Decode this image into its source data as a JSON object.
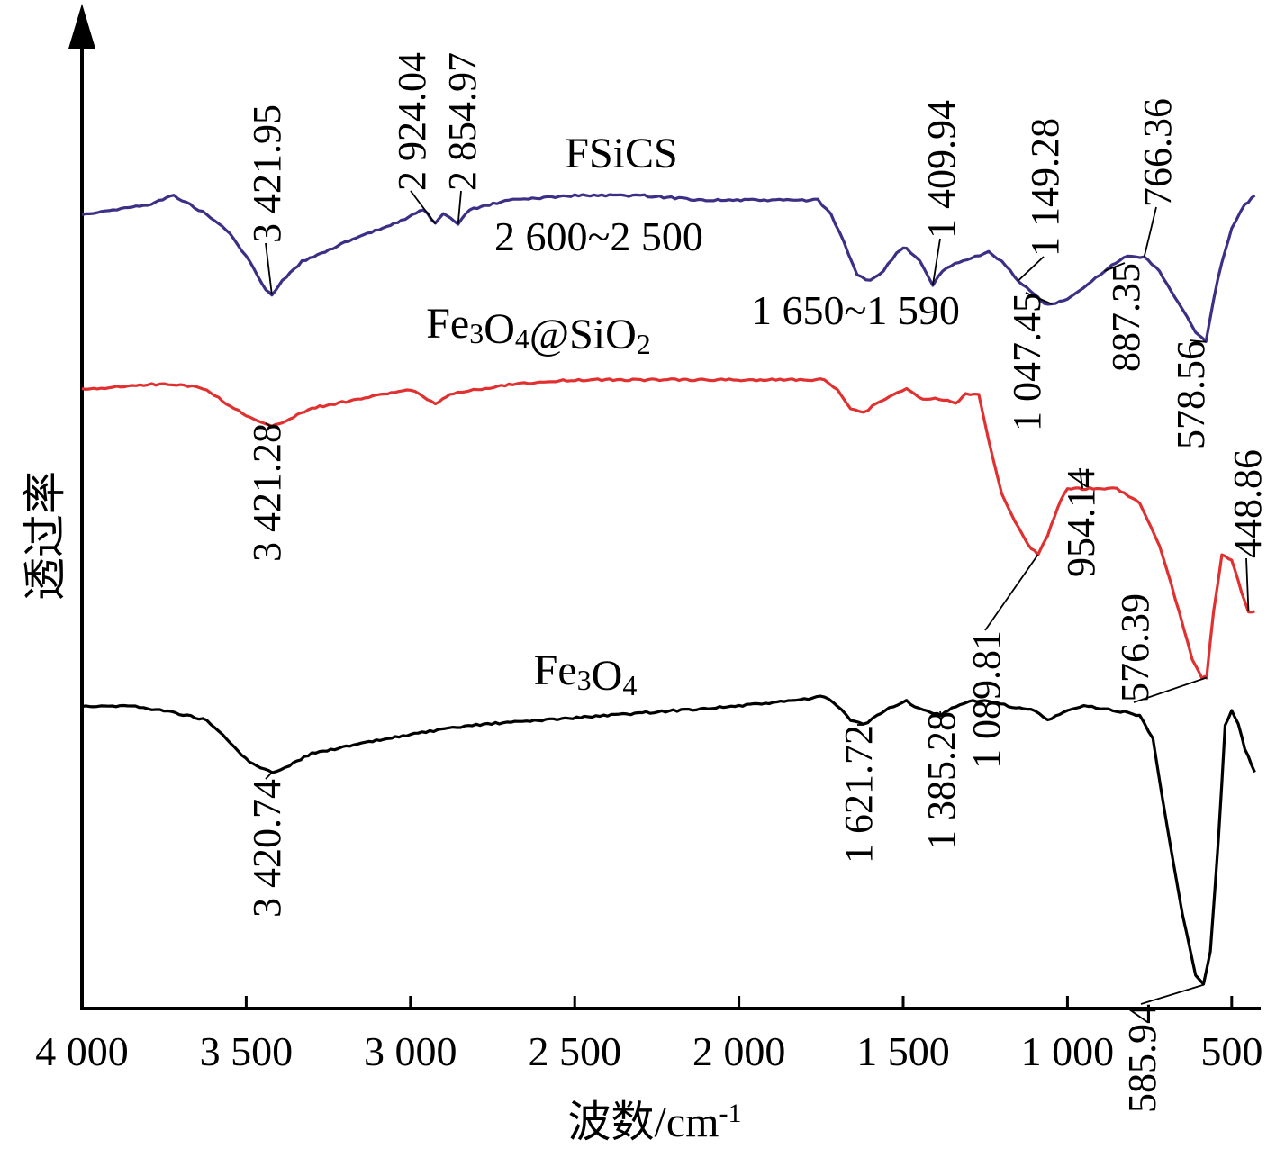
{
  "chart_data": {
    "type": "line",
    "xlabel": "波数/cm",
    "xlabel_superscript": "-1",
    "ylabel": "透过率",
    "xlim": [
      4000,
      420
    ],
    "x_reversed": true,
    "y_axis_ticks": false,
    "grid": false,
    "legend": "none (series labeled inline above each curve)",
    "x_ticks": [
      {
        "value": 4000,
        "label": "4 000"
      },
      {
        "value": 3500,
        "label": "3 500"
      },
      {
        "value": 3000,
        "label": "3 000"
      },
      {
        "value": 2500,
        "label": "2 500"
      },
      {
        "value": 2000,
        "label": "2 000"
      },
      {
        "value": 1500,
        "label": "1 500"
      },
      {
        "value": 1000,
        "label": "1 000"
      },
      {
        "value": 500,
        "label": "500"
      }
    ],
    "series": [
      {
        "name": "FSiCS",
        "name_parts": [
          {
            "t": "FSiCS"
          }
        ],
        "color": "#3b2f86",
        "offset": 0.84,
        "points": [
          [
            4000,
            0.84
          ],
          [
            3800,
            0.85
          ],
          [
            3720,
            0.86
          ],
          [
            3670,
            0.85
          ],
          [
            3620,
            0.84
          ],
          [
            3550,
            0.82
          ],
          [
            3490,
            0.79
          ],
          [
            3440,
            0.76
          ],
          [
            3421.95,
            0.755
          ],
          [
            3390,
            0.77
          ],
          [
            3330,
            0.79
          ],
          [
            3200,
            0.81
          ],
          [
            3050,
            0.83
          ],
          [
            2960,
            0.845
          ],
          [
            2924.04,
            0.83
          ],
          [
            2900,
            0.84
          ],
          [
            2854.97,
            0.83
          ],
          [
            2820,
            0.845
          ],
          [
            2700,
            0.855
          ],
          [
            2500,
            0.86
          ],
          [
            2300,
            0.86
          ],
          [
            2100,
            0.855
          ],
          [
            1900,
            0.855
          ],
          [
            1760,
            0.855
          ],
          [
            1720,
            0.84
          ],
          [
            1680,
            0.81
          ],
          [
            1640,
            0.775
          ],
          [
            1600,
            0.77
          ],
          [
            1560,
            0.78
          ],
          [
            1520,
            0.8
          ],
          [
            1490,
            0.805
          ],
          [
            1450,
            0.79
          ],
          [
            1409.94,
            0.765
          ],
          [
            1380,
            0.78
          ],
          [
            1330,
            0.79
          ],
          [
            1280,
            0.795
          ],
          [
            1240,
            0.8
          ],
          [
            1200,
            0.79
          ],
          [
            1149.28,
            0.77
          ],
          [
            1100,
            0.755
          ],
          [
            1070,
            0.745
          ],
          [
            1047.45,
            0.745
          ],
          [
            1000,
            0.75
          ],
          [
            940,
            0.765
          ],
          [
            887.35,
            0.78
          ],
          [
            830,
            0.795
          ],
          [
            766.36,
            0.795
          ],
          [
            720,
            0.78
          ],
          [
            650,
            0.74
          ],
          [
            610,
            0.715
          ],
          [
            578.56,
            0.705
          ],
          [
            555,
            0.75
          ],
          [
            530,
            0.79
          ],
          [
            500,
            0.825
          ],
          [
            460,
            0.85
          ],
          [
            430,
            0.86
          ]
        ]
      },
      {
        "name": "Fe3O4@SiO2",
        "name_parts": [
          {
            "t": "Fe"
          },
          {
            "t": "3",
            "sub": true
          },
          {
            "t": "O"
          },
          {
            "t": "4",
            "sub": true
          },
          {
            "t": "@SiO"
          },
          {
            "t": "2",
            "sub": true
          }
        ],
        "color": "#e03030",
        "offset": 0.0,
        "points": [
          [
            4000,
            0.655
          ],
          [
            3800,
            0.66
          ],
          [
            3700,
            0.66
          ],
          [
            3620,
            0.655
          ],
          [
            3560,
            0.64
          ],
          [
            3490,
            0.625
          ],
          [
            3421.28,
            0.615
          ],
          [
            3390,
            0.62
          ],
          [
            3300,
            0.635
          ],
          [
            3150,
            0.645
          ],
          [
            3000,
            0.655
          ],
          [
            2924,
            0.64
          ],
          [
            2880,
            0.65
          ],
          [
            2700,
            0.66
          ],
          [
            2500,
            0.665
          ],
          [
            2300,
            0.665
          ],
          [
            2100,
            0.665
          ],
          [
            1900,
            0.665
          ],
          [
            1740,
            0.665
          ],
          [
            1700,
            0.655
          ],
          [
            1660,
            0.635
          ],
          [
            1621,
            0.63
          ],
          [
            1580,
            0.64
          ],
          [
            1530,
            0.65
          ],
          [
            1490,
            0.655
          ],
          [
            1440,
            0.645
          ],
          [
            1390,
            0.645
          ],
          [
            1340,
            0.64
          ],
          [
            1310,
            0.65
          ],
          [
            1270,
            0.65
          ],
          [
            1240,
            0.6
          ],
          [
            1200,
            0.545
          ],
          [
            1160,
            0.515
          ],
          [
            1120,
            0.49
          ],
          [
            1089.81,
            0.48
          ],
          [
            1060,
            0.5
          ],
          [
            1030,
            0.53
          ],
          [
            1000,
            0.55
          ],
          [
            954.14,
            0.55
          ],
          [
            900,
            0.55
          ],
          [
            850,
            0.55
          ],
          [
            780,
            0.535
          ],
          [
            720,
            0.49
          ],
          [
            660,
            0.42
          ],
          [
            620,
            0.37
          ],
          [
            590,
            0.35
          ],
          [
            576.39,
            0.35
          ],
          [
            555,
            0.42
          ],
          [
            530,
            0.48
          ],
          [
            500,
            0.475
          ],
          [
            470,
            0.44
          ],
          [
            448.86,
            0.42
          ],
          [
            430,
            0.42
          ]
        ]
      },
      {
        "name": "Fe3O4",
        "name_parts": [
          {
            "t": "Fe"
          },
          {
            "t": "3",
            "sub": true
          },
          {
            "t": "O"
          },
          {
            "t": "4",
            "sub": true
          }
        ],
        "color": "#000000",
        "offset": 0.0,
        "points": [
          [
            4000,
            0.32
          ],
          [
            3850,
            0.32
          ],
          [
            3750,
            0.315
          ],
          [
            3680,
            0.31
          ],
          [
            3620,
            0.305
          ],
          [
            3560,
            0.285
          ],
          [
            3490,
            0.26
          ],
          [
            3420.74,
            0.25
          ],
          [
            3380,
            0.255
          ],
          [
            3300,
            0.27
          ],
          [
            3150,
            0.28
          ],
          [
            3000,
            0.29
          ],
          [
            2800,
            0.3
          ],
          [
            2600,
            0.305
          ],
          [
            2400,
            0.31
          ],
          [
            2200,
            0.315
          ],
          [
            2000,
            0.32
          ],
          [
            1850,
            0.325
          ],
          [
            1740,
            0.33
          ],
          [
            1700,
            0.32
          ],
          [
            1660,
            0.305
          ],
          [
            1621.72,
            0.3
          ],
          [
            1580,
            0.31
          ],
          [
            1530,
            0.32
          ],
          [
            1490,
            0.325
          ],
          [
            1440,
            0.315
          ],
          [
            1385.28,
            0.31
          ],
          [
            1340,
            0.32
          ],
          [
            1300,
            0.325
          ],
          [
            1240,
            0.325
          ],
          [
            1180,
            0.32
          ],
          [
            1100,
            0.315
          ],
          [
            1060,
            0.305
          ],
          [
            1000,
            0.315
          ],
          [
            950,
            0.32
          ],
          [
            850,
            0.315
          ],
          [
            780,
            0.31
          ],
          [
            740,
            0.285
          ],
          [
            700,
            0.2
          ],
          [
            650,
            0.1
          ],
          [
            610,
            0.035
          ],
          [
            585.94,
            0.025
          ],
          [
            565,
            0.06
          ],
          [
            540,
            0.18
          ],
          [
            520,
            0.3
          ],
          [
            500,
            0.315
          ],
          [
            480,
            0.3
          ],
          [
            460,
            0.275
          ],
          [
            430,
            0.25
          ]
        ]
      }
    ],
    "annotations": [
      {
        "text": "3 421.95",
        "series": "FSiCS",
        "x": 3421.95,
        "orientation": "vertical",
        "placement": "above"
      },
      {
        "text": "2 924.04",
        "series": "FSiCS",
        "x": 2924.04,
        "orientation": "vertical",
        "placement": "above"
      },
      {
        "text": "2 854.97",
        "series": "FSiCS",
        "x": 2854.97,
        "orientation": "vertical",
        "placement": "above"
      },
      {
        "text": "2 600~2 500",
        "series": "FSiCS",
        "x": 2550,
        "orientation": "horizontal",
        "placement": "below"
      },
      {
        "text": "1 650~1 590",
        "series": "FSiCS",
        "x": 1620,
        "orientation": "horizontal",
        "placement": "below"
      },
      {
        "text": "1 409.94",
        "series": "FSiCS",
        "x": 1409.94,
        "orientation": "vertical",
        "placement": "above"
      },
      {
        "text": "1 149.28",
        "series": "FSiCS",
        "x": 1149.28,
        "orientation": "vertical",
        "placement": "above"
      },
      {
        "text": "766.36",
        "series": "FSiCS",
        "x": 766.36,
        "orientation": "vertical",
        "placement": "above"
      },
      {
        "text": "1 047.45",
        "series": "FSiCS",
        "x": 1047.45,
        "orientation": "vertical",
        "placement": "below"
      },
      {
        "text": "887.35",
        "series": "FSiCS",
        "x": 887.35,
        "orientation": "vertical",
        "placement": "below"
      },
      {
        "text": "578.56",
        "series": "FSiCS",
        "x": 578.56,
        "orientation": "vertical",
        "placement": "below"
      },
      {
        "text": "3 421.28",
        "series": "Fe3O4@SiO2",
        "x": 3421.28,
        "orientation": "vertical",
        "placement": "below"
      },
      {
        "text": "1 089.81",
        "series": "Fe3O4@SiO2",
        "x": 1089.81,
        "orientation": "vertical",
        "placement": "below"
      },
      {
        "text": "954.14",
        "series": "Fe3O4@SiO2",
        "x": 954.14,
        "orientation": "vertical",
        "placement": "below"
      },
      {
        "text": "576.39",
        "series": "Fe3O4@SiO2",
        "x": 576.39,
        "orientation": "vertical",
        "placement": "above"
      },
      {
        "text": "448.86",
        "series": "Fe3O4@SiO2",
        "x": 448.86,
        "orientation": "vertical",
        "placement": "above"
      },
      {
        "text": "3 420.74",
        "series": "Fe3O4",
        "x": 3420.74,
        "orientation": "vertical",
        "placement": "below"
      },
      {
        "text": "1 621.72",
        "series": "Fe3O4",
        "x": 1621.72,
        "orientation": "vertical",
        "placement": "below"
      },
      {
        "text": "1 385.28",
        "series": "Fe3O4",
        "x": 1385.28,
        "orientation": "vertical",
        "placement": "below"
      },
      {
        "text": "585.94",
        "series": "Fe3O4",
        "x": 585.94,
        "orientation": "vertical",
        "placement": "below"
      }
    ]
  }
}
